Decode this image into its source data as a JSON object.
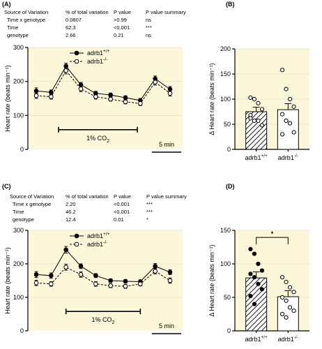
{
  "panels": [
    "(A)",
    "(B)",
    "(C)",
    "(D)"
  ],
  "tables": [
    {
      "headers": [
        "Source of Variation",
        "% of total variation",
        "P value",
        "P value summary"
      ],
      "rows": [
        [
          "Time x genotype",
          "0.0807",
          ">0.99",
          "ns"
        ],
        [
          "Time",
          "62.3",
          "<0.001",
          "***"
        ],
        [
          "genotype",
          "2.66",
          "0.21",
          "ns"
        ]
      ]
    },
    {
      "headers": [
        "Source of Variation",
        "% of total variation",
        "P value",
        "P value summary"
      ],
      "rows": [
        [
          "Time x genotype",
          "2.20",
          "<0.001",
          "***"
        ],
        [
          "Time",
          "46.2",
          "<0.001",
          "***"
        ],
        [
          "genotype",
          "12.4",
          "0.01",
          "*"
        ]
      ]
    }
  ],
  "colors": {
    "plot_bg": "#fbf7d8",
    "filled": "#000000",
    "open": "#ffffff"
  },
  "chart_data": [
    {
      "panel": "(A)",
      "type": "line",
      "ylabel": "Heart rate (beats min⁻¹)",
      "ylim": [
        0,
        300
      ],
      "yticks": [
        0,
        100,
        200,
        300
      ],
      "x": [
        1,
        2,
        3,
        4,
        5,
        6,
        7,
        8,
        9,
        10
      ],
      "series": [
        {
          "name": "adrb1+/+",
          "values": [
            172,
            168,
            245,
            190,
            165,
            160,
            152,
            144,
            208,
            177
          ],
          "errors": [
            9,
            7,
            9,
            7,
            6,
            6,
            6,
            6,
            8,
            8
          ]
        },
        {
          "name": "adrb1-/-",
          "values": [
            158,
            155,
            232,
            178,
            155,
            148,
            140,
            135,
            198,
            165
          ],
          "errors": [
            8,
            7,
            10,
            8,
            7,
            6,
            6,
            6,
            9,
            8
          ]
        }
      ],
      "annotation": "1% CO₂",
      "annotation_x": [
        2.5,
        7.8
      ],
      "scalebar": "5 min",
      "legend": "top-center"
    },
    {
      "panel": "(B)",
      "type": "bar",
      "ylabel": "Δ Heart rate (beats min⁻¹)",
      "ylim": [
        0,
        200
      ],
      "yticks": [
        0,
        50,
        100,
        150,
        200
      ],
      "categories": [
        "adrb1+/+",
        "adrb1-/-"
      ],
      "values": [
        75,
        79
      ],
      "errors": [
        9,
        12
      ],
      "points": [
        [
          103,
          100,
          92,
          80,
          68,
          57,
          57,
          48,
          62
        ],
        [
          158,
          120,
          100,
          85,
          70,
          57,
          52,
          34,
          30
        ]
      ]
    },
    {
      "panel": "(C)",
      "type": "line",
      "ylabel": "Heart rate (beats min⁻¹)",
      "ylim": [
        0,
        300
      ],
      "yticks": [
        0,
        100,
        200,
        300
      ],
      "x": [
        1,
        2,
        3,
        4,
        5,
        6,
        7,
        8,
        9,
        10
      ],
      "series": [
        {
          "name": "adrb1+/+",
          "values": [
            168,
            165,
            242,
            193,
            165,
            150,
            148,
            147,
            193,
            175
          ],
          "errors": [
            9,
            8,
            10,
            7,
            6,
            5,
            5,
            5,
            8,
            7
          ]
        },
        {
          "name": "adrb1-/-",
          "values": [
            143,
            140,
            190,
            168,
            140,
            135,
            133,
            140,
            178,
            150
          ],
          "errors": [
            8,
            7,
            9,
            8,
            7,
            6,
            6,
            6,
            8,
            8
          ]
        }
      ],
      "annotation": "1% CO₂",
      "annotation_x": [
        3.0,
        8.0
      ],
      "scalebar": "5 min",
      "legend": "top-center"
    },
    {
      "panel": "(D)",
      "type": "bar",
      "ylabel": "Δ Heart rate (beats min⁻¹)",
      "ylim": [
        0,
        150
      ],
      "yticks": [
        0,
        50,
        100,
        150
      ],
      "categories": [
        "adrb1+/+",
        "adrb1-/-"
      ],
      "values": [
        79,
        51
      ],
      "errors": [
        9,
        9
      ],
      "points": [
        [
          122,
          115,
          100,
          90,
          85,
          80,
          70,
          62,
          52,
          40
        ],
        [
          80,
          73,
          65,
          58,
          50,
          45,
          35,
          30,
          25,
          20
        ]
      ],
      "significance": "*"
    }
  ]
}
